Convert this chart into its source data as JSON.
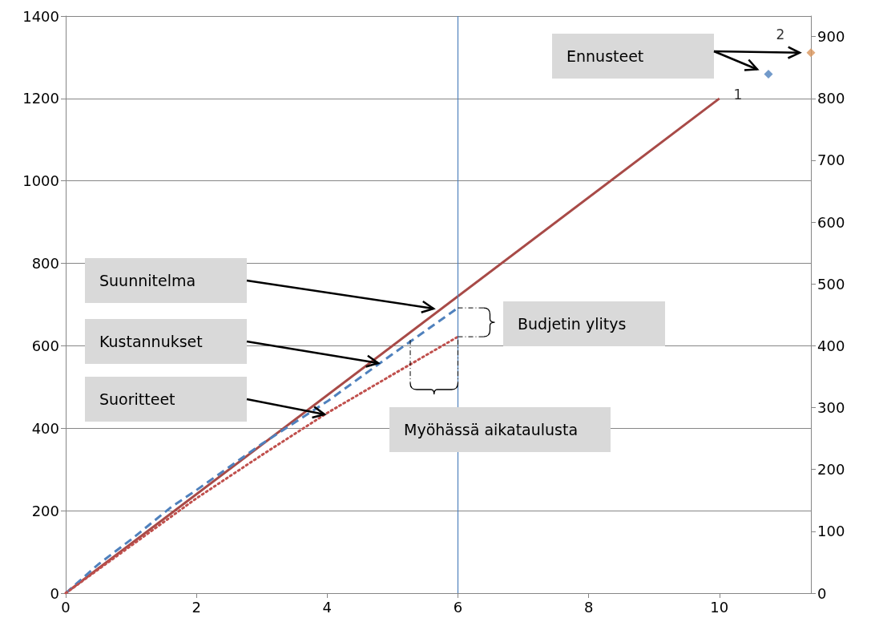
{
  "chart_data": {
    "type": "line",
    "xlim": [
      0,
      11.4
    ],
    "xticks": [
      0,
      2,
      4,
      6,
      8,
      10
    ],
    "ylim": [
      0,
      1400
    ],
    "yticks": [
      0,
      200,
      400,
      600,
      800,
      1000,
      1200,
      1400
    ],
    "y2lim": [
      0,
      933.3
    ],
    "y2ticks": [
      0,
      100,
      200,
      300,
      400,
      500,
      600,
      700,
      800,
      900
    ],
    "grid": "y",
    "series": [
      {
        "color": "#a84a47",
        "line_style": "solid",
        "x": [
          0,
          10
        ],
        "values": [
          0,
          1200
        ]
      },
      {
        "color": "#4f81bd",
        "line_style": "dashed",
        "x": [
          0,
          0.5,
          1,
          1.6,
          2,
          3,
          4,
          5,
          6
        ],
        "values": [
          0,
          70,
          130,
          207,
          250,
          362,
          465,
          580,
          692
        ]
      },
      {
        "color": "#c0504d",
        "line_style": "dotted",
        "x": [
          0,
          1,
          2,
          3,
          4,
          5,
          6
        ],
        "values": [
          0,
          115,
          230,
          335,
          437,
          530,
          622
        ]
      },
      {
        "name": "1",
        "type": "scatter",
        "marker": "diamond",
        "color": "#4f81bd",
        "x": [
          10.75
        ],
        "values": [
          1259
        ]
      },
      {
        "name": "2",
        "type": "scatter",
        "marker": "diamond",
        "color": "#d9955b",
        "x": [
          11.4
        ],
        "values": [
          1311
        ]
      }
    ],
    "ref_lines": [
      {
        "axis": "x",
        "value": 6,
        "color": "#4f81bd"
      }
    ],
    "annotations": [
      "Suunnitelma",
      "Kustannukset",
      "Suoritteet",
      "Budjetin ylitys",
      "Myöhässä aikataulusta",
      "Ennusteet"
    ]
  }
}
